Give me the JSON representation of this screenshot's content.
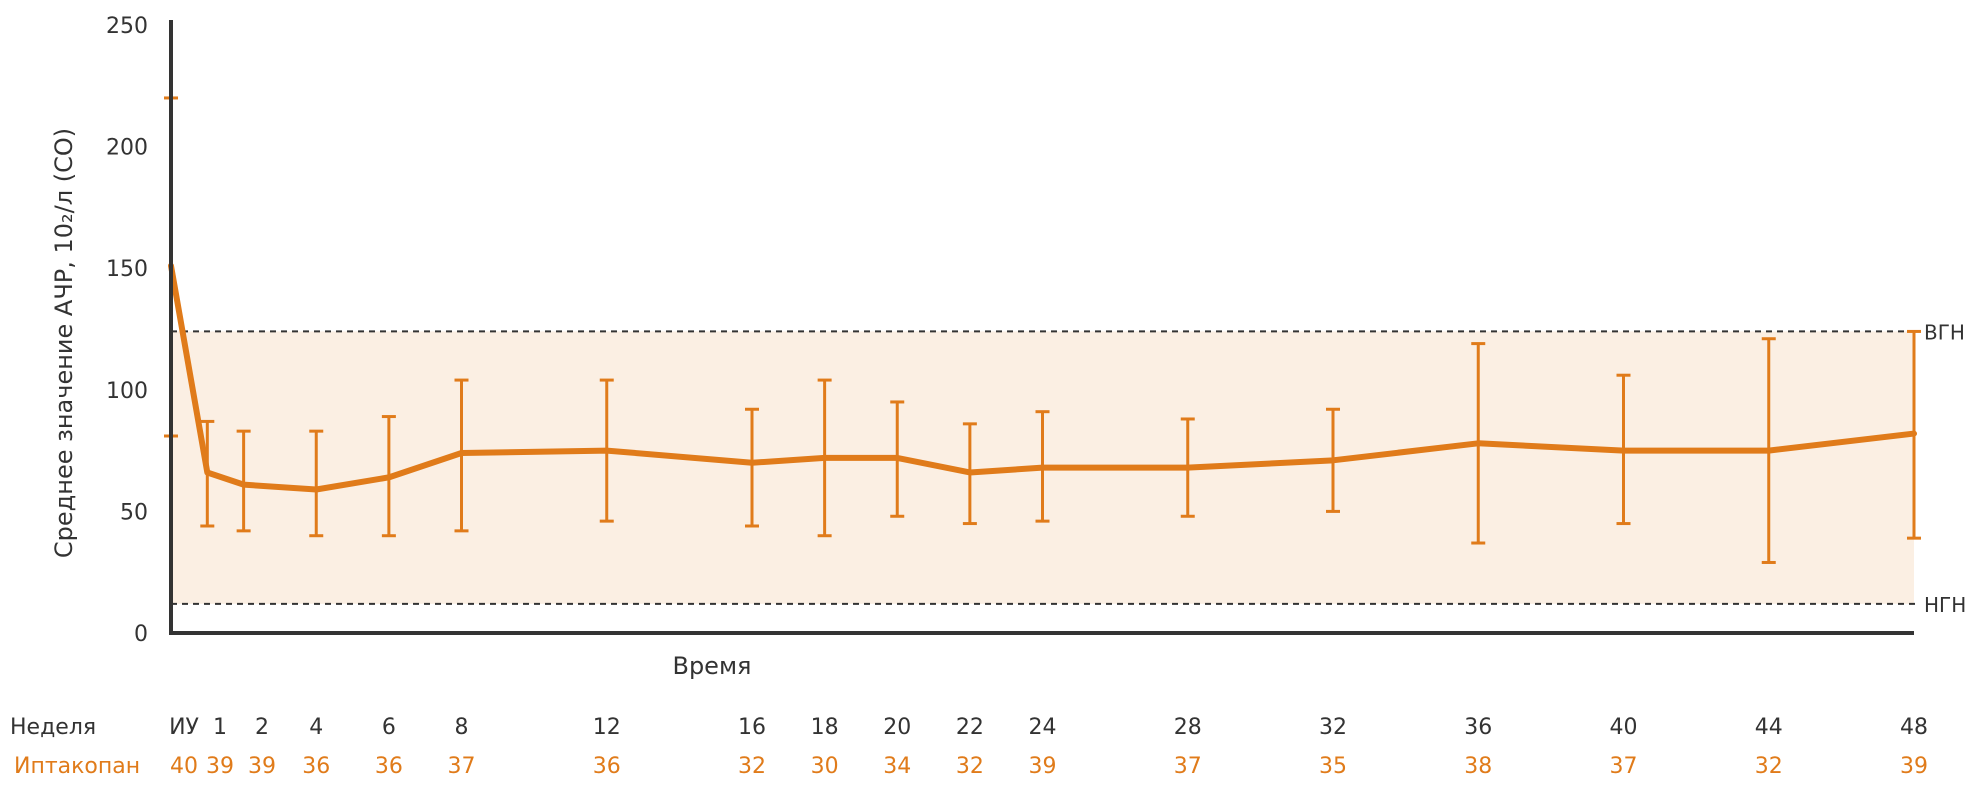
{
  "chart_data": {
    "type": "line",
    "ylabel": "Среднее значение АЧР, 10₂/л (СО)",
    "xlabel": "Время",
    "ylim": [
      0,
      250
    ],
    "yticks": [
      "0",
      "50",
      "100",
      "150",
      "200",
      "250"
    ],
    "x": [
      "ИУ",
      "1",
      "2",
      "4",
      "6",
      "8",
      "12",
      "16",
      "18",
      "20",
      "22",
      "24",
      "28",
      "32",
      "36",
      "40",
      "44",
      "48"
    ],
    "x_week": [
      0,
      1,
      2,
      4,
      6,
      8,
      12,
      16,
      18,
      20,
      22,
      24,
      28,
      32,
      36,
      40,
      44,
      48
    ],
    "series": [
      {
        "name": "Иптакопан",
        "color": "#E07B1A",
        "values": [
          151,
          66,
          61,
          59,
          64,
          74,
          75,
          70,
          72,
          72,
          66,
          68,
          68,
          71,
          78,
          75,
          75,
          82
        ],
        "err_low": [
          81,
          44,
          42,
          40,
          40,
          42,
          46,
          44,
          40,
          48,
          45,
          46,
          48,
          50,
          37,
          45,
          29,
          39
        ],
        "err_high": [
          220,
          87,
          83,
          83,
          89,
          104,
          104,
          92,
          104,
          95,
          86,
          91,
          88,
          92,
          119,
          106,
          121,
          124
        ]
      }
    ],
    "reference_lines": [
      {
        "label": "ВГН",
        "value": 124
      },
      {
        "label": "НГН",
        "value": 12
      }
    ],
    "band_color": "#FBEFE3",
    "grid": false
  },
  "table": {
    "week_label": "Неделя",
    "weeks": [
      "ИУ",
      "1",
      "2",
      "4",
      "6",
      "8",
      "12",
      "16",
      "18",
      "20",
      "22",
      "24",
      "28",
      "32",
      "36",
      "40",
      "44",
      "48"
    ],
    "drug_label": "Иптакопан",
    "counts": [
      "40",
      "39",
      "39",
      "36",
      "36",
      "37",
      "36",
      "32",
      "30",
      "34",
      "32",
      "39",
      "37",
      "35",
      "38",
      "37",
      "32",
      "39"
    ],
    "drug_color": "#E07B1A"
  }
}
